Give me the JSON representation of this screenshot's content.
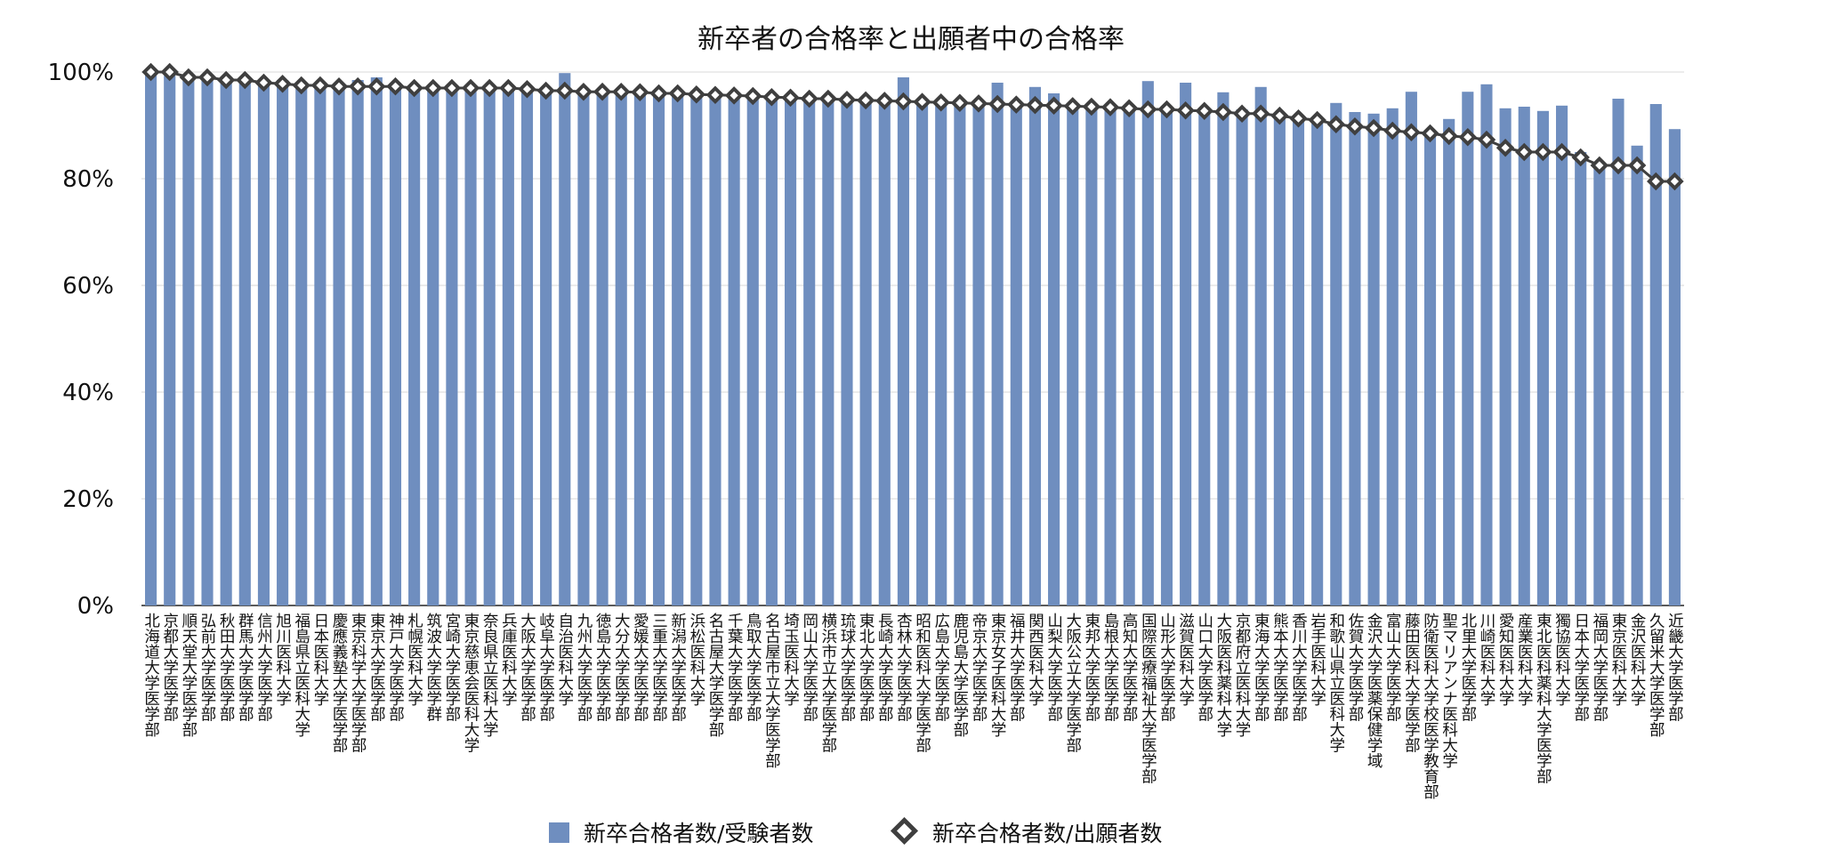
{
  "chart_data": {
    "type": "bar",
    "title": "新卒者の合格率と出願者中の合格率",
    "xlabel": "",
    "ylabel": "",
    "ylim": [
      0,
      1
    ],
    "y_ticks": [
      "0%",
      "20%",
      "40%",
      "60%",
      "80%",
      "100%"
    ],
    "grid": true,
    "legend_position": "bottom",
    "colors": {
      "bar": "#6f8ebf",
      "marker": "#3f3f3f",
      "grid": "#d9d9d9"
    },
    "categories": [
      "北海道大学医学部",
      "京都大学医学部",
      "順天堂大学医学部",
      "弘前大学医学部",
      "秋田大学医学部",
      "群馬大学医学部",
      "信州大学医学部",
      "旭川医科大学",
      "福島県立医科大学",
      "日本医科大学",
      "慶應義塾大学医学部",
      "東京科学大学医学部",
      "東京大学医学部",
      "神戸大学医学部",
      "札幌医科大学",
      "筑波大学医学群",
      "宮崎大学医学部",
      "東京慈恵会医科大学",
      "奈良県立医科大学",
      "兵庫医科大学",
      "大阪大学医学部",
      "岐阜大学医学部",
      "自治医科大学",
      "九州大学医学部",
      "徳島大学医学部",
      "大分大学医学部",
      "愛媛大学医学部",
      "三重大学医学部",
      "新潟大学医学部",
      "浜松医科大学",
      "名古屋大学医学部",
      "千葉大学医学部",
      "鳥取大学医学部",
      "名古屋市立大学医学部",
      "埼玉医科大学",
      "岡山大学医学部",
      "横浜市立大学医学部",
      "琉球大学医学部",
      "東北大学医学部",
      "長崎大学医学部",
      "杏林大学医学部",
      "昭和医科大学医学部",
      "広島大学医学部",
      "鹿児島大学医学部",
      "帝京大学医学部",
      "東京女子医科大学",
      "福井大学医学部",
      "関西医科大学",
      "山梨大学医学部",
      "大阪公立大学医学部",
      "東邦大学医学部",
      "島根大学医学部",
      "高知大学医学部",
      "国際医療福祉大学医学部",
      "山形大学医学部",
      "滋賀医科大学",
      "山口大学医学部",
      "大阪医科薬科大学",
      "京都府立医科大学",
      "東海大学医学部",
      "熊本大学医学部",
      "香川大学医学部",
      "岩手医科大学",
      "和歌山県立医科大学",
      "佐賀大学医学部",
      "金沢大学医薬保健学域",
      "富山大学医学部",
      "藤田医科大学医学部",
      "防衛医科大学校医学教育部",
      "聖マリアンナ医科大学",
      "北里大学医学部",
      "川崎医科大学",
      "愛知医科大学",
      "産業医科大学",
      "東北医科薬科大学医学部",
      "獨協医科大学",
      "日本大学医学部",
      "福岡大学医学部",
      "東京医科大学",
      "金沢医科大学",
      "久留米大学医学部",
      "近畿大学医学部"
    ],
    "series": [
      {
        "name": "新卒合格者数/受験者数",
        "type": "bar",
        "values": [
          1.0,
          0.993,
          0.99,
          0.99,
          0.99,
          0.985,
          0.985,
          0.985,
          0.98,
          0.98,
          0.975,
          0.985,
          0.99,
          0.98,
          0.975,
          0.975,
          0.975,
          0.975,
          0.97,
          0.97,
          0.965,
          0.97,
          0.998,
          0.965,
          0.965,
          0.965,
          0.965,
          0.965,
          0.96,
          0.96,
          0.96,
          0.96,
          0.955,
          0.955,
          0.955,
          0.955,
          0.955,
          0.95,
          0.95,
          0.95,
          0.99,
          0.945,
          0.945,
          0.945,
          0.945,
          0.98,
          0.94,
          0.972,
          0.96,
          0.94,
          0.94,
          0.935,
          0.935,
          0.983,
          0.935,
          0.98,
          0.93,
          0.962,
          0.93,
          0.972,
          0.92,
          0.91,
          0.915,
          0.942,
          0.925,
          0.922,
          0.932,
          0.963,
          0.885,
          0.912,
          0.963,
          0.977,
          0.932,
          0.935,
          0.927,
          0.937,
          0.85,
          0.83,
          0.95,
          0.862,
          0.94,
          0.893
        ]
      },
      {
        "name": "新卒合格者数/出願者数",
        "type": "line",
        "values": [
          1.0,
          1.0,
          0.99,
          0.99,
          0.985,
          0.985,
          0.98,
          0.978,
          0.975,
          0.975,
          0.973,
          0.973,
          0.973,
          0.973,
          0.97,
          0.97,
          0.97,
          0.97,
          0.97,
          0.97,
          0.968,
          0.965,
          0.965,
          0.963,
          0.963,
          0.963,
          0.962,
          0.96,
          0.96,
          0.958,
          0.957,
          0.956,
          0.955,
          0.953,
          0.952,
          0.95,
          0.95,
          0.948,
          0.947,
          0.946,
          0.945,
          0.944,
          0.943,
          0.942,
          0.941,
          0.94,
          0.939,
          0.938,
          0.937,
          0.936,
          0.935,
          0.934,
          0.932,
          0.93,
          0.93,
          0.928,
          0.927,
          0.925,
          0.922,
          0.922,
          0.918,
          0.913,
          0.91,
          0.902,
          0.898,
          0.895,
          0.89,
          0.887,
          0.885,
          0.88,
          0.878,
          0.873,
          0.858,
          0.85,
          0.85,
          0.85,
          0.84,
          0.825,
          0.825,
          0.825,
          0.795,
          0.795
        ]
      }
    ]
  }
}
